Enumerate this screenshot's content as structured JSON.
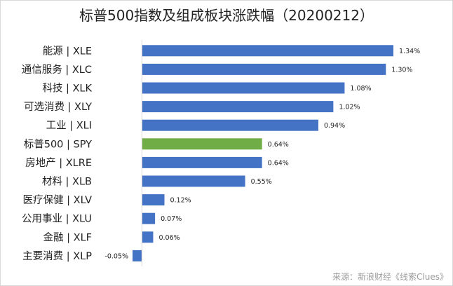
{
  "chart_data": {
    "type": "bar",
    "orientation": "horizontal",
    "title": "标普500指数及组成板块涨跌幅（20200212）",
    "source": "来源：新浪财经《线索Clues》",
    "categories": [
      "能源 | XLE",
      "通信服务 | XLC",
      "科技 | XLK",
      "可选消费 | XLY",
      "工业 | XLI",
      "标普500 | SPY",
      "房地产 | XLRE",
      "材料 | XLB",
      "医疗保健 | XLV",
      "公用事业 | XLU",
      "金融 | XLF",
      "主要消费 | XLP"
    ],
    "values": [
      1.34,
      1.3,
      1.08,
      1.02,
      0.94,
      0.64,
      0.64,
      0.55,
      0.12,
      0.07,
      0.06,
      -0.05
    ],
    "labels": [
      "1.34%",
      "1.30%",
      "1.08%",
      "1.02%",
      "0.94%",
      "0.64%",
      "0.64%",
      "0.55%",
      "0.12%",
      "0.07%",
      "0.06%",
      "-0.05%"
    ],
    "xlim": [
      -0.05,
      1.34
    ],
    "grid": false,
    "legend": "none",
    "bar_color": "#4472c4",
    "highlight_color": "#70ad47",
    "highlight_index": 5,
    "axis_color": "#d9d9d9"
  }
}
